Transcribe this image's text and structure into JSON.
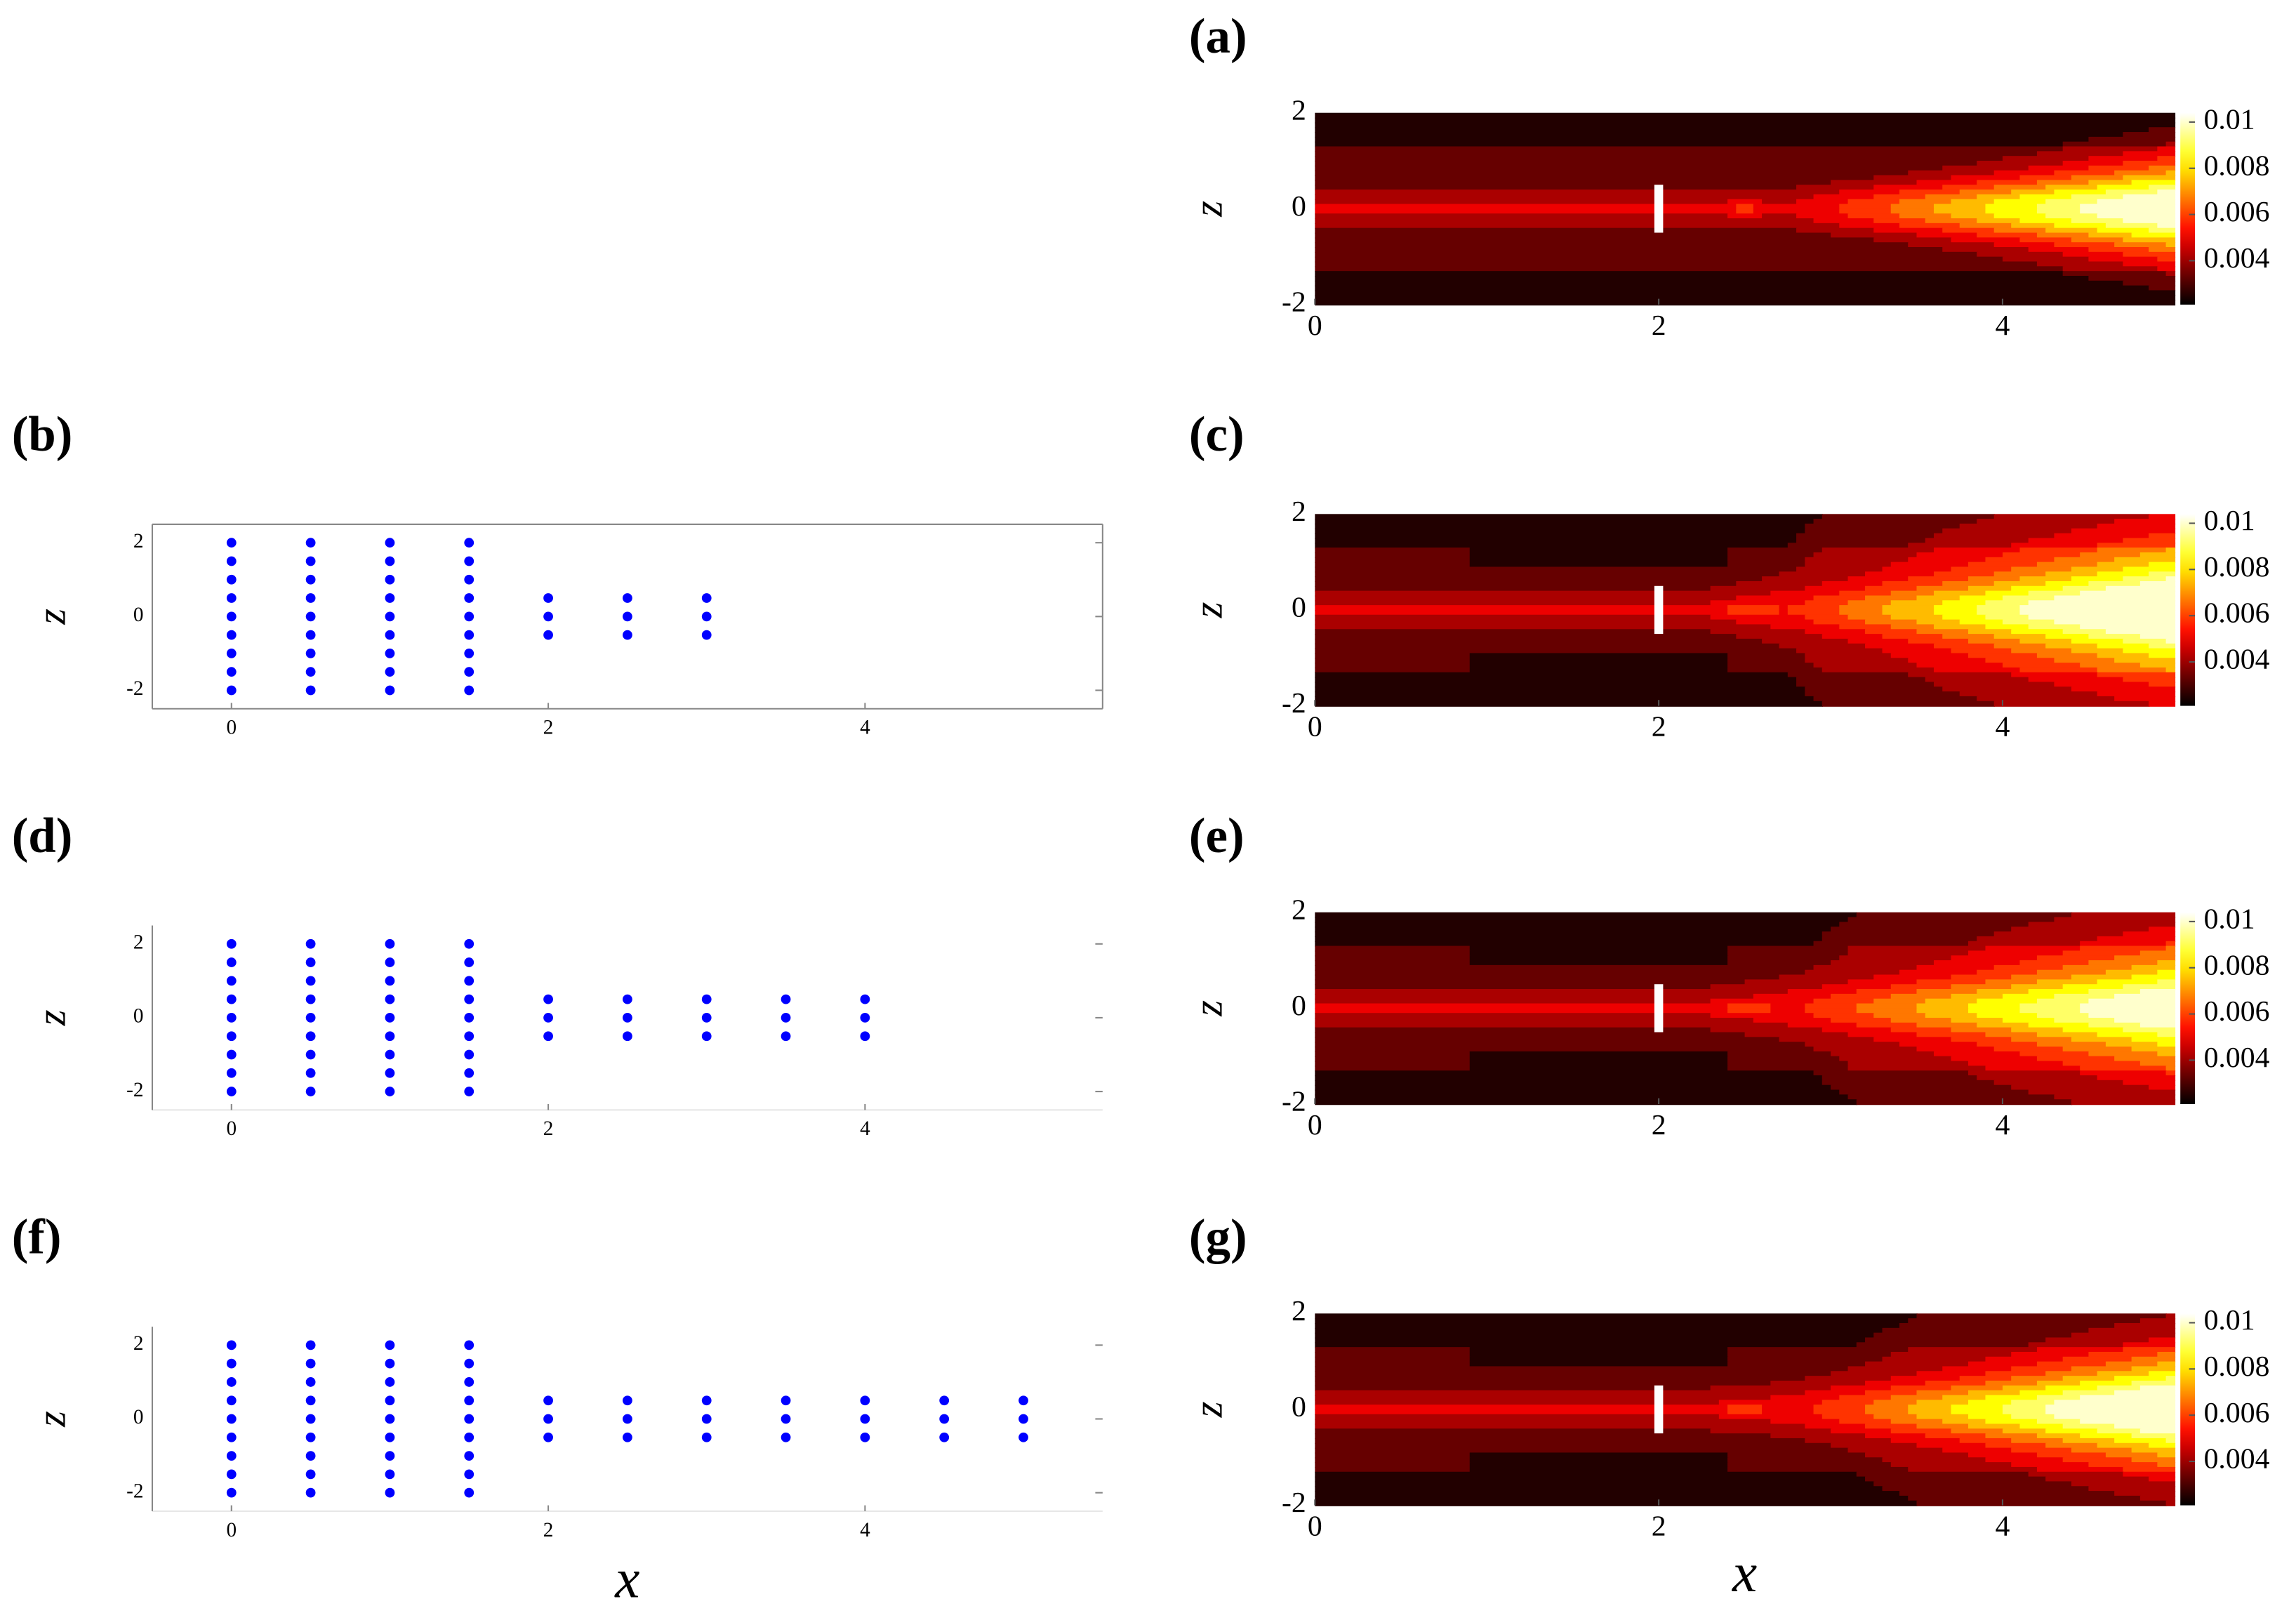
{
  "chart_data": [
    {
      "type": "contour",
      "label": "(a)",
      "ylabel": "z",
      "xlim": [
        0,
        5
      ],
      "ylim": [
        -2,
        2
      ],
      "xticks": [
        0,
        2,
        4
      ],
      "yticks": [
        -2,
        0,
        2
      ],
      "clim": [
        0.0021,
        0.0104
      ],
      "cticks": [
        0.004,
        0.006,
        0.008,
        0.01
      ]
    },
    {
      "type": "scatter",
      "label": "(b)",
      "ylabel": "z",
      "color": "#0000ff",
      "box": true,
      "xlim": [
        -0.5,
        5.5
      ],
      "ylim": [
        -2.5,
        2.5
      ],
      "xticks": [
        0,
        2,
        4
      ],
      "yticks": [
        -2,
        0,
        2
      ],
      "x": [
        0,
        0,
        0,
        0,
        0,
        0,
        0,
        0,
        0,
        0.5,
        0.5,
        0.5,
        0.5,
        0.5,
        0.5,
        0.5,
        0.5,
        0.5,
        1,
        1,
        1,
        1,
        1,
        1,
        1,
        1,
        1,
        1.5,
        1.5,
        1.5,
        1.5,
        1.5,
        1.5,
        1.5,
        1.5,
        1.5,
        2,
        2,
        2,
        2.5,
        2.5,
        2.5,
        3,
        3,
        3
      ],
      "y": [
        -2,
        -1.5,
        -1,
        -0.5,
        0,
        0.5,
        1,
        1.5,
        2,
        -2,
        -1.5,
        -1,
        -0.5,
        0,
        0.5,
        1,
        1.5,
        2,
        -2,
        -1.5,
        -1,
        -0.5,
        0,
        0.5,
        1,
        1.5,
        2,
        -2,
        -1.5,
        -1,
        -0.5,
        0,
        0.5,
        1,
        1.5,
        2,
        -0.5,
        0,
        0.5,
        -0.5,
        0,
        0.5,
        -0.5,
        0,
        0.5
      ]
    },
    {
      "type": "contour",
      "label": "(c)",
      "ylabel": "z",
      "xlim": [
        0,
        5
      ],
      "ylim": [
        -2,
        2
      ],
      "xticks": [
        0,
        2,
        4
      ],
      "yticks": [
        -2,
        0,
        2
      ],
      "clim": [
        0.0021,
        0.0104
      ],
      "cticks": [
        0.004,
        0.006,
        0.008,
        0.01
      ]
    },
    {
      "type": "scatter",
      "label": "(d)",
      "ylabel": "z",
      "color": "#0000ff",
      "box": false,
      "xlim": [
        -0.5,
        5.5
      ],
      "ylim": [
        -2.5,
        2.5
      ],
      "xticks": [
        0,
        2,
        4
      ],
      "yticks": [
        -2,
        0,
        2
      ],
      "x": [
        0,
        0,
        0,
        0,
        0,
        0,
        0,
        0,
        0,
        0.5,
        0.5,
        0.5,
        0.5,
        0.5,
        0.5,
        0.5,
        0.5,
        0.5,
        1,
        1,
        1,
        1,
        1,
        1,
        1,
        1,
        1,
        1.5,
        1.5,
        1.5,
        1.5,
        1.5,
        1.5,
        1.5,
        1.5,
        1.5,
        2,
        2,
        2,
        2.5,
        2.5,
        2.5,
        3,
        3,
        3,
        3.5,
        3.5,
        3.5,
        4,
        4,
        4
      ],
      "y": [
        -2,
        -1.5,
        -1,
        -0.5,
        0,
        0.5,
        1,
        1.5,
        2,
        -2,
        -1.5,
        -1,
        -0.5,
        0,
        0.5,
        1,
        1.5,
        2,
        -2,
        -1.5,
        -1,
        -0.5,
        0,
        0.5,
        1,
        1.5,
        2,
        -2,
        -1.5,
        -1,
        -0.5,
        0,
        0.5,
        1,
        1.5,
        2,
        -0.5,
        0,
        0.5,
        -0.5,
        0,
        0.5,
        -0.5,
        0,
        0.5,
        -0.5,
        0,
        0.5,
        -0.5,
        0,
        0.5
      ]
    },
    {
      "type": "contour",
      "label": "(e)",
      "ylabel": "z",
      "xlim": [
        0,
        5
      ],
      "ylim": [
        -2,
        2
      ],
      "xticks": [
        0,
        2,
        4
      ],
      "yticks": [
        -2,
        0,
        2
      ],
      "clim": [
        0.0021,
        0.0104
      ],
      "cticks": [
        0.004,
        0.006,
        0.008,
        0.01
      ]
    },
    {
      "type": "scatter",
      "label": "(f)",
      "xlabel": "x",
      "ylabel": "z",
      "color": "#0000ff",
      "box": false,
      "xlim": [
        -0.5,
        5.5
      ],
      "ylim": [
        -2.5,
        2.5
      ],
      "xticks": [
        0,
        2,
        4
      ],
      "yticks": [
        -2,
        0,
        2
      ],
      "x": [
        0,
        0,
        0,
        0,
        0,
        0,
        0,
        0,
        0,
        0.5,
        0.5,
        0.5,
        0.5,
        0.5,
        0.5,
        0.5,
        0.5,
        0.5,
        1,
        1,
        1,
        1,
        1,
        1,
        1,
        1,
        1,
        1.5,
        1.5,
        1.5,
        1.5,
        1.5,
        1.5,
        1.5,
        1.5,
        1.5,
        2,
        2,
        2,
        2.5,
        2.5,
        2.5,
        3,
        3,
        3,
        3.5,
        3.5,
        3.5,
        4,
        4,
        4,
        4.5,
        4.5,
        4.5,
        5,
        5,
        5
      ],
      "y": [
        -2,
        -1.5,
        -1,
        -0.5,
        0,
        0.5,
        1,
        1.5,
        2,
        -2,
        -1.5,
        -1,
        -0.5,
        0,
        0.5,
        1,
        1.5,
        2,
        -2,
        -1.5,
        -1,
        -0.5,
        0,
        0.5,
        1,
        1.5,
        2,
        -2,
        -1.5,
        -1,
        -0.5,
        0,
        0.5,
        1,
        1.5,
        2,
        -0.5,
        0,
        0.5,
        -0.5,
        0,
        0.5,
        -0.5,
        0,
        0.5,
        -0.5,
        0,
        0.5,
        -0.5,
        0,
        0.5,
        -0.5,
        0,
        0.5,
        -0.5,
        0,
        0.5
      ]
    },
    {
      "type": "contour",
      "label": "(g)",
      "xlabel": "x",
      "ylabel": "z",
      "xlim": [
        0,
        5
      ],
      "ylim": [
        -2,
        2
      ],
      "xticks": [
        0,
        2,
        4
      ],
      "yticks": [
        -2,
        0,
        2
      ],
      "clim": [
        0.0021,
        0.0104
      ],
      "cticks": [
        0.004,
        0.006,
        0.008,
        0.01
      ]
    }
  ]
}
